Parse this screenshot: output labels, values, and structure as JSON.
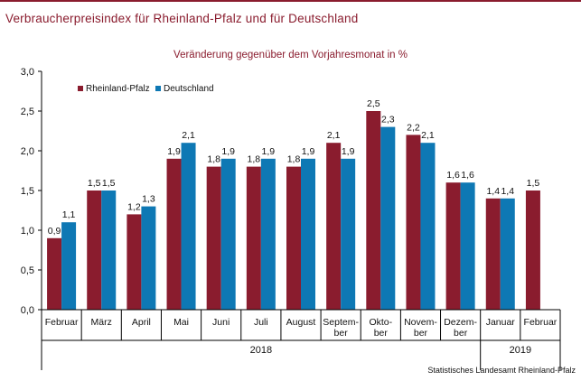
{
  "title": "Verbraucherpreisindex für Rheinland-Pfalz und für Deutschland",
  "subtitle": "Veränderung gegenüber dem Vorjahresmonat in %",
  "source": "Statistisches Landesamt Rheinland-Pfalz",
  "colors": {
    "rlp": "#8a1c2e",
    "de": "#0e78b4",
    "accent": "#8a1c2e"
  },
  "chart_data": {
    "type": "bar",
    "categories": [
      [
        "Februar"
      ],
      [
        "März"
      ],
      [
        "April"
      ],
      [
        "Mai"
      ],
      [
        "Juni"
      ],
      [
        "Juli"
      ],
      [
        "August"
      ],
      [
        "Septem-",
        "ber"
      ],
      [
        "Okto-",
        "ber"
      ],
      [
        "Novem-",
        "ber"
      ],
      [
        "Dezem-",
        "ber"
      ],
      [
        "Januar"
      ],
      [
        "Februar"
      ]
    ],
    "years": [
      {
        "label": "2018",
        "from": 0,
        "to": 10
      },
      {
        "label": "2019",
        "from": 11,
        "to": 12
      }
    ],
    "series": [
      {
        "name": "Rheinland-Pfalz",
        "values": [
          0.9,
          1.5,
          1.2,
          1.9,
          1.8,
          1.8,
          1.8,
          2.1,
          2.5,
          2.2,
          1.6,
          1.4,
          1.5
        ],
        "labels": [
          "0,9",
          "1,5",
          "1,2",
          "1,9",
          "1,8",
          "1,8",
          "1,8",
          "2,1",
          "2,5",
          "2,2",
          "1,6",
          "1,4",
          "1,5"
        ]
      },
      {
        "name": "Deutschland",
        "values": [
          1.1,
          1.5,
          1.3,
          2.1,
          1.9,
          1.9,
          1.9,
          1.9,
          2.3,
          2.1,
          1.6,
          1.4,
          null
        ],
        "labels": [
          "1,1",
          "1,5",
          "1,3",
          "2,1",
          "1,9",
          "1,9",
          "1,9",
          "1,9",
          "2,3",
          "2,1",
          "1,6",
          "1,4",
          ""
        ]
      }
    ],
    "yticks": [
      "0,0",
      "0,5",
      "1,0",
      "1,5",
      "2,0",
      "2,5",
      "3,0"
    ],
    "ylim": [
      0,
      3.0
    ],
    "grid": false,
    "legend": "top-left"
  }
}
